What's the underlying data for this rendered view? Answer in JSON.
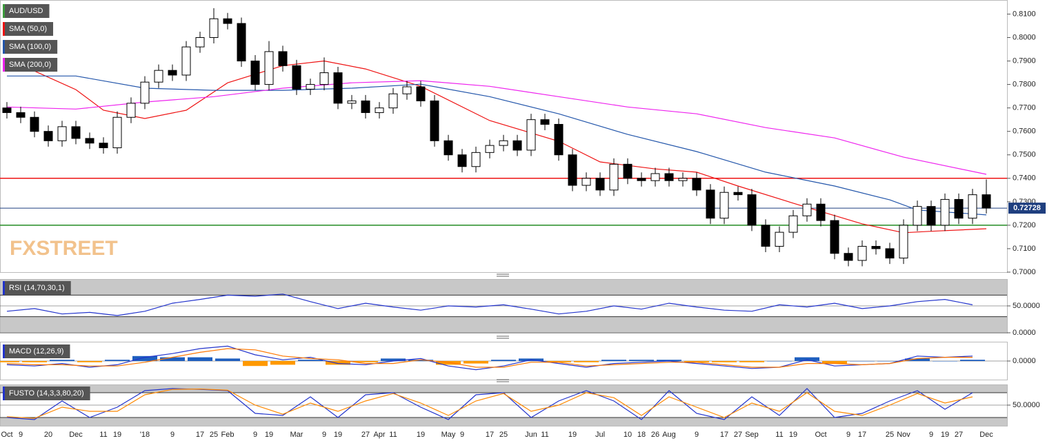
{
  "chart_data": [
    {
      "type": "candlestick",
      "title": "AUD/USD",
      "watermark": "FXSTREET",
      "categories": [
        "Oct",
        "9",
        null,
        "20",
        null,
        "Dec",
        null,
        "11",
        "19",
        null,
        "'18",
        null,
        "9",
        null,
        "17",
        "25",
        "Feb",
        null,
        "9",
        "19",
        null,
        "Mar",
        null,
        "9",
        "19",
        null,
        "27",
        "Apr",
        "11",
        null,
        "19",
        null,
        "May",
        "9",
        null,
        "17",
        "25",
        null,
        "Jun",
        "11",
        null,
        "19",
        null,
        "Jul",
        null,
        "10",
        "18",
        "26",
        "Aug",
        null,
        "9",
        null,
        "17",
        "27",
        "Sep",
        null,
        "11",
        "19",
        null,
        "Oct",
        null,
        "9",
        "17",
        null,
        "25",
        "Nov",
        null,
        "9",
        "19",
        "27",
        null,
        "Dec"
      ],
      "ohlc": [
        [
          0.77,
          0.7725,
          0.7655,
          0.768
        ],
        [
          0.768,
          0.7705,
          0.7635,
          0.766
        ],
        [
          0.766,
          0.7685,
          0.7575,
          0.76
        ],
        [
          0.76,
          0.7625,
          0.7535,
          0.756
        ],
        [
          0.756,
          0.7645,
          0.7535,
          0.762
        ],
        [
          0.762,
          0.7645,
          0.7545,
          0.757
        ],
        [
          0.757,
          0.7595,
          0.7525,
          0.755
        ],
        [
          0.755,
          0.7575,
          0.7505,
          0.753
        ],
        [
          0.753,
          0.7685,
          0.7505,
          0.766
        ],
        [
          0.766,
          0.7745,
          0.7635,
          0.772
        ],
        [
          0.772,
          0.7835,
          0.7695,
          0.781
        ],
        [
          0.781,
          0.7885,
          0.7785,
          0.786
        ],
        [
          0.786,
          0.7885,
          0.7815,
          0.784
        ],
        [
          0.784,
          0.7985,
          0.7815,
          0.796
        ],
        [
          0.796,
          0.8025,
          0.7935,
          0.8
        ],
        [
          0.8,
          0.8125,
          0.7975,
          0.808
        ],
        [
          0.808,
          0.8105,
          0.8035,
          0.806
        ],
        [
          0.806,
          0.8085,
          0.7875,
          0.79
        ],
        [
          0.79,
          0.7925,
          0.7775,
          0.78
        ],
        [
          0.78,
          0.7985,
          0.7775,
          0.794
        ],
        [
          0.794,
          0.7965,
          0.7855,
          0.788
        ],
        [
          0.788,
          0.7905,
          0.7755,
          0.778
        ],
        [
          0.778,
          0.7825,
          0.7755,
          0.78
        ],
        [
          0.78,
          0.7915,
          0.7775,
          0.785
        ],
        [
          0.785,
          0.7875,
          0.7695,
          0.772
        ],
        [
          0.772,
          0.7755,
          0.7695,
          0.773
        ],
        [
          0.773,
          0.7755,
          0.7655,
          0.768
        ],
        [
          0.768,
          0.7725,
          0.7655,
          0.77
        ],
        [
          0.77,
          0.7785,
          0.7675,
          0.776
        ],
        [
          0.776,
          0.7815,
          0.7735,
          0.779
        ],
        [
          0.779,
          0.7815,
          0.7705,
          0.773
        ],
        [
          0.773,
          0.7755,
          0.7535,
          0.756
        ],
        [
          0.756,
          0.7585,
          0.7475,
          0.75
        ],
        [
          0.75,
          0.7525,
          0.7425,
          0.745
        ],
        [
          0.745,
          0.7535,
          0.7425,
          0.751
        ],
        [
          0.751,
          0.7565,
          0.7485,
          0.754
        ],
        [
          0.754,
          0.7585,
          0.7515,
          0.756
        ],
        [
          0.756,
          0.7585,
          0.7495,
          0.752
        ],
        [
          0.752,
          0.7675,
          0.7495,
          0.765
        ],
        [
          0.765,
          0.7675,
          0.7605,
          0.763
        ],
        [
          0.763,
          0.7655,
          0.7475,
          0.75
        ],
        [
          0.75,
          0.7525,
          0.7345,
          0.737
        ],
        [
          0.737,
          0.7425,
          0.7345,
          0.74
        ],
        [
          0.74,
          0.7425,
          0.7325,
          0.735
        ],
        [
          0.735,
          0.7485,
          0.7325,
          0.746
        ],
        [
          0.746,
          0.7485,
          0.7375,
          0.74
        ],
        [
          0.74,
          0.7425,
          0.7365,
          0.739
        ],
        [
          0.739,
          0.7445,
          0.7365,
          0.742
        ],
        [
          0.742,
          0.7445,
          0.7365,
          0.739
        ],
        [
          0.739,
          0.7425,
          0.7365,
          0.74
        ],
        [
          0.74,
          0.7425,
          0.7325,
          0.735
        ],
        [
          0.735,
          0.7375,
          0.7205,
          0.723
        ],
        [
          0.723,
          0.7365,
          0.7205,
          0.734
        ],
        [
          0.734,
          0.7365,
          0.7305,
          0.733
        ],
        [
          0.733,
          0.7355,
          0.7175,
          0.72
        ],
        [
          0.72,
          0.7225,
          0.7085,
          0.711
        ],
        [
          0.711,
          0.7195,
          0.7085,
          0.717
        ],
        [
          0.717,
          0.7265,
          0.7145,
          0.724
        ],
        [
          0.724,
          0.7315,
          0.7215,
          0.729
        ],
        [
          0.729,
          0.7315,
          0.7195,
          0.722
        ],
        [
          0.722,
          0.7245,
          0.7055,
          0.708
        ],
        [
          0.708,
          0.7105,
          0.7025,
          0.705
        ],
        [
          0.705,
          0.7135,
          0.7025,
          0.711
        ],
        [
          0.711,
          0.7135,
          0.7075,
          0.71
        ],
        [
          0.71,
          0.7125,
          0.7035,
          0.706
        ],
        [
          0.706,
          0.7225,
          0.7035,
          0.72
        ],
        [
          0.72,
          0.7305,
          0.7175,
          0.728
        ],
        [
          0.728,
          0.7305,
          0.7175,
          0.72
        ],
        [
          0.72,
          0.7335,
          0.7175,
          0.731
        ],
        [
          0.731,
          0.7335,
          0.7205,
          0.723
        ],
        [
          0.723,
          0.7355,
          0.7205,
          0.733
        ],
        [
          0.733,
          0.7395,
          0.725,
          0.7273
        ]
      ],
      "series": [
        {
          "name": "SMA (50,0)",
          "color": "#ee1111",
          "x": [
            0,
            5,
            7,
            10,
            13,
            16,
            20,
            23,
            26,
            30,
            35,
            40,
            43,
            47,
            50,
            53,
            57,
            62,
            65,
            67,
            71
          ],
          "values": [
            0.791,
            0.7778,
            0.769,
            0.7655,
            0.769,
            0.7807,
            0.788,
            0.79,
            0.7866,
            0.7792,
            0.7646,
            0.7558,
            0.747,
            0.744,
            0.7426,
            0.7367,
            0.7294,
            0.7206,
            0.7168,
            0.7174,
            0.7185
          ]
        },
        {
          "name": "SMA (100,0)",
          "color": "#2255aa",
          "x": [
            0,
            5,
            10,
            15,
            20,
            25,
            30,
            35,
            40,
            45,
            50,
            55,
            60,
            64,
            66,
            71
          ],
          "values": [
            0.7836,
            0.7836,
            0.7784,
            0.7775,
            0.7775,
            0.7784,
            0.7801,
            0.7748,
            0.7675,
            0.7587,
            0.7514,
            0.7426,
            0.7367,
            0.7308,
            0.7265,
            0.7244
          ]
        },
        {
          "name": "SMA (200,0)",
          "color": "#ee22ee",
          "x": [
            0,
            5,
            10,
            15,
            20,
            25,
            30,
            35,
            40,
            45,
            50,
            55,
            60,
            65,
            71
          ],
          "values": [
            0.7704,
            0.7695,
            0.7725,
            0.7748,
            0.7784,
            0.7807,
            0.7816,
            0.7792,
            0.7748,
            0.7704,
            0.7675,
            0.7616,
            0.7572,
            0.749,
            0.7417
          ]
        }
      ],
      "hlines": [
        {
          "value": 0.74,
          "color": "#ee1111"
        },
        {
          "value": 0.72,
          "color": "#228b22"
        }
      ],
      "last_price": 0.72728,
      "last_price_color": "#1f3f7f",
      "ylim": [
        0.7,
        0.816
      ],
      "yticks": [
        {
          "value": 0.7,
          "label": "0.7000"
        },
        {
          "value": 0.71,
          "label": "0.7100"
        },
        {
          "value": 0.72,
          "label": "0.7200"
        },
        {
          "value": 0.73,
          "label": "0.7300"
        },
        {
          "value": 0.74,
          "label": "0.7400"
        },
        {
          "value": 0.75,
          "label": "0.7500"
        },
        {
          "value": 0.76,
          "label": "0.7600"
        },
        {
          "value": 0.77,
          "label": "0.7700"
        },
        {
          "value": 0.78,
          "label": "0.7800"
        },
        {
          "value": 0.79,
          "label": "0.7900"
        },
        {
          "value": 0.8,
          "label": "0.8000"
        },
        {
          "value": 0.81,
          "label": "0.8100"
        }
      ]
    },
    {
      "type": "line",
      "title": "RSI (14,70,30,1)",
      "x": [
        0,
        2,
        4,
        6,
        8,
        10,
        12,
        14,
        16,
        18,
        20,
        22,
        24,
        26,
        28,
        30,
        32,
        34,
        36,
        38,
        40,
        42,
        44,
        46,
        48,
        50,
        52,
        54,
        56,
        58,
        60,
        62,
        64,
        66,
        68,
        70
      ],
      "series": [
        {
          "color": "#2233cc",
          "values": [
            40,
            45,
            35,
            38,
            32,
            40,
            55,
            62,
            70,
            68,
            72,
            58,
            45,
            55,
            48,
            42,
            50,
            48,
            52,
            44,
            35,
            40,
            50,
            44,
            55,
            48,
            42,
            40,
            52,
            48,
            55,
            45,
            50,
            58,
            62,
            52
          ]
        }
      ],
      "bands": [
        30,
        70
      ],
      "ylim": [
        0,
        100
      ],
      "yticks": [
        {
          "value": 0,
          "label": "0.0000"
        },
        {
          "value": 50,
          "label": "50.0000"
        }
      ]
    },
    {
      "type": "macd",
      "title": "MACD (12,26,9)",
      "x": [
        0,
        2,
        4,
        6,
        8,
        10,
        12,
        14,
        16,
        18,
        20,
        22,
        24,
        26,
        28,
        30,
        32,
        34,
        36,
        38,
        40,
        42,
        44,
        46,
        48,
        50,
        52,
        54,
        56,
        58,
        60,
        62,
        64,
        66,
        68,
        70
      ],
      "histogram": [
        -0.001,
        -0.001,
        0.001,
        -0.001,
        0.001,
        0.004,
        0.003,
        0.003,
        0.002,
        -0.004,
        -0.003,
        0.001,
        -0.003,
        -0.001,
        0.002,
        0.001,
        -0.003,
        -0.002,
        0.001,
        0.002,
        -0.001,
        -0.001,
        0.001,
        0.001,
        0.001,
        -0.001,
        -0.001,
        -0.001,
        0.0,
        0.003,
        -0.002,
        0.0,
        0.0,
        0.002,
        0.0,
        0.001
      ],
      "histogram_colors": [
        "#1f5fbf",
        "#ff9900"
      ],
      "series": [
        {
          "color": "#2233cc",
          "values": [
            -0.003,
            -0.004,
            -0.002,
            -0.005,
            -0.003,
            0.003,
            0.006,
            0.01,
            0.012,
            0.005,
            0.001,
            0.003,
            -0.002,
            -0.003,
            0.0,
            0.002,
            -0.004,
            -0.007,
            -0.004,
            0.001,
            -0.002,
            -0.005,
            -0.002,
            -0.001,
            0.0,
            -0.002,
            -0.004,
            -0.006,
            -0.005,
            0.001,
            -0.004,
            -0.003,
            -0.002,
            0.004,
            0.003,
            0.004
          ]
        },
        {
          "color": "#ff7700",
          "values": [
            -0.002,
            -0.003,
            -0.003,
            -0.004,
            -0.004,
            -0.001,
            0.003,
            0.007,
            0.01,
            0.009,
            0.004,
            0.002,
            0.001,
            -0.002,
            -0.002,
            0.001,
            -0.001,
            -0.005,
            -0.005,
            -0.001,
            -0.001,
            -0.004,
            -0.003,
            -0.002,
            -0.001,
            -0.001,
            -0.003,
            -0.005,
            -0.005,
            -0.002,
            -0.002,
            -0.003,
            -0.002,
            0.002,
            0.003,
            0.003
          ]
        }
      ],
      "ylim": [
        -0.015,
        0.015
      ],
      "yticks": [
        {
          "value": 0,
          "label": "0.0000"
        }
      ]
    },
    {
      "type": "line",
      "title": "FUSTO (14,3,3,80,20)",
      "x": [
        0,
        2,
        4,
        6,
        8,
        10,
        12,
        14,
        16,
        18,
        20,
        22,
        24,
        26,
        28,
        30,
        32,
        34,
        36,
        38,
        40,
        42,
        44,
        46,
        48,
        50,
        52,
        54,
        56,
        58,
        60,
        62,
        64,
        66,
        68,
        70
      ],
      "series": [
        {
          "color": "#2233cc",
          "values": [
            20,
            15,
            60,
            20,
            45,
            85,
            90,
            88,
            85,
            30,
            25,
            70,
            20,
            75,
            80,
            45,
            15,
            75,
            80,
            20,
            60,
            85,
            60,
            15,
            85,
            30,
            15,
            70,
            25,
            90,
            20,
            30,
            60,
            85,
            40,
            80
          ]
        },
        {
          "color": "#ff8800",
          "values": [
            22,
            18,
            45,
            35,
            35,
            75,
            88,
            89,
            86,
            50,
            28,
            55,
            35,
            60,
            78,
            55,
            25,
            60,
            78,
            35,
            50,
            80,
            68,
            25,
            70,
            45,
            20,
            55,
            35,
            80,
            35,
            25,
            50,
            78,
            55,
            70
          ]
        }
      ],
      "bands": [
        20,
        80
      ],
      "ylim": [
        0,
        100
      ],
      "yticks": [
        {
          "value": 50,
          "label": "50.0000"
        }
      ]
    }
  ]
}
